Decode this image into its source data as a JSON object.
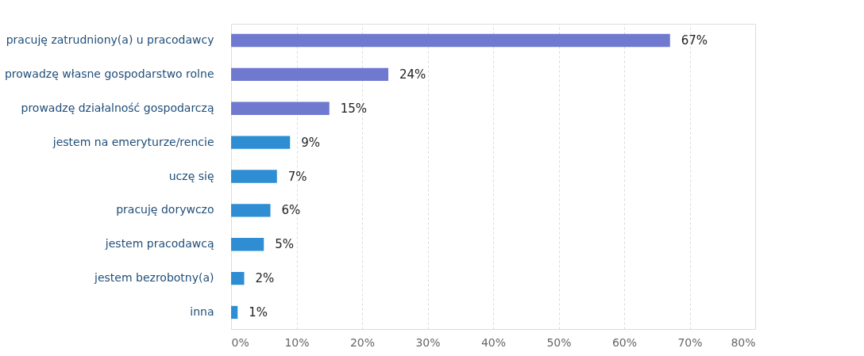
{
  "chart_data": {
    "type": "bar",
    "orientation": "horizontal",
    "categories": [
      "pracuję zatrudniony(a) u pracodawcy",
      "prowadzę własne gospodarstwo rolne",
      "prowadzę działalność gospodarczą",
      "jestem na emeryturze/rencie",
      "uczę się",
      "pracuję dorywczo",
      "jestem pracodawcą",
      "jestem bezrobotny(a)",
      "inna"
    ],
    "values": [
      67,
      24,
      15,
      9,
      7,
      6,
      5,
      2,
      1
    ],
    "colors": [
      "#6f79cf",
      "#6f79cf",
      "#6f79cf",
      "#2f8dd3",
      "#2f8dd3",
      "#2f8dd3",
      "#2f8dd3",
      "#2f8dd3",
      "#2f8dd3"
    ],
    "value_labels": [
      "67%",
      "24%",
      "15%",
      "9%",
      "7%",
      "6%",
      "5%",
      "2%",
      "1%"
    ],
    "xlim": [
      0,
      80
    ],
    "xticks": [
      {
        "value": 0,
        "label": "0%"
      },
      {
        "value": 10,
        "label": "10%"
      },
      {
        "value": 20,
        "label": "20%"
      },
      {
        "value": 30,
        "label": "30%"
      },
      {
        "value": 40,
        "label": "40%"
      },
      {
        "value": 50,
        "label": "50%"
      },
      {
        "value": 60,
        "label": "60%"
      },
      {
        "value": 70,
        "label": "70%"
      },
      {
        "value": 80,
        "label": "80%"
      }
    ],
    "grid": "x"
  }
}
